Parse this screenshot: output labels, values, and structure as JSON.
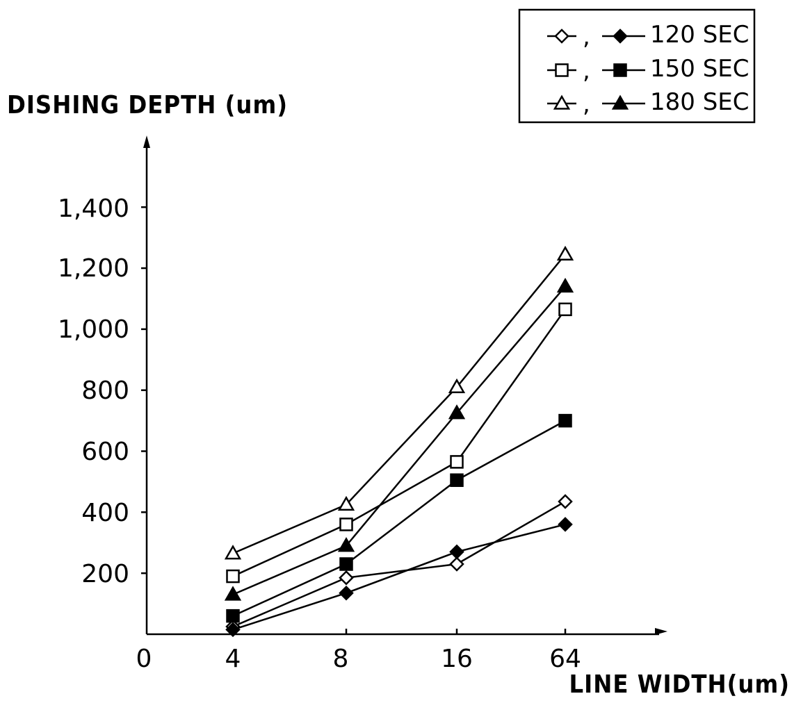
{
  "chart_data": {
    "type": "line",
    "ylabel": "DISHING DEPTH (um)",
    "xlabel": "LINE WIDTH(um)",
    "categories": [
      "4",
      "8",
      "16",
      "64"
    ],
    "x_origin_label": "0",
    "yticks": [
      "200",
      "400",
      "600",
      "800",
      "1,000",
      "1,200",
      "1,400"
    ],
    "ylim": [
      0,
      1600
    ],
    "legend_position": "top-right",
    "legend": [
      {
        "label": "120 SEC",
        "series": [
          "120 SEC (open)",
          "120 SEC (filled)"
        ]
      },
      {
        "label": "150 SEC",
        "series": [
          "150 SEC (open)",
          "150 SEC (filled)"
        ]
      },
      {
        "label": "180 SEC",
        "series": [
          "180 SEC (open)",
          "180 SEC (filled)"
        ]
      }
    ],
    "series": [
      {
        "name": "120 SEC",
        "marker": "diamond",
        "filled": false,
        "values": [
          25,
          185,
          230,
          435
        ]
      },
      {
        "name": "120 SEC",
        "marker": "diamond",
        "filled": true,
        "values": [
          15,
          135,
          270,
          360
        ]
      },
      {
        "name": "150 SEC",
        "marker": "square",
        "filled": false,
        "values": [
          190,
          360,
          565,
          1065
        ]
      },
      {
        "name": "150 SEC",
        "marker": "square",
        "filled": true,
        "values": [
          60,
          230,
          505,
          700
        ]
      },
      {
        "name": "180 SEC",
        "marker": "triangle",
        "filled": false,
        "values": [
          265,
          425,
          810,
          1245
        ]
      },
      {
        "name": "180 SEC",
        "marker": "triangle",
        "filled": true,
        "values": [
          130,
          290,
          725,
          1140
        ]
      }
    ]
  }
}
